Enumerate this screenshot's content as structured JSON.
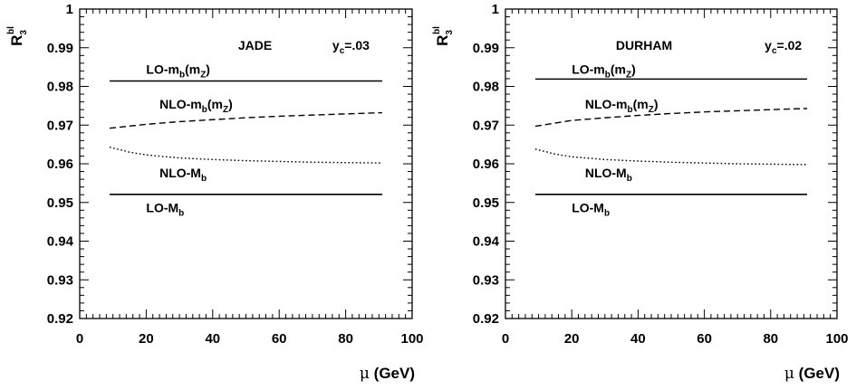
{
  "chart_data": [
    {
      "type": "line",
      "title": "",
      "annotation": {
        "algo": "JADE",
        "ycut_sym": "y",
        "ycut_sub": "c",
        "ycut_val": "=.03"
      },
      "xlabel": {
        "sym": "μ",
        "unit": "(GeV)"
      },
      "ylabel": {
        "main": "R",
        "sub": "3",
        "sup": "bl"
      },
      "xlim": [
        0,
        100
      ],
      "ylim": [
        0.92,
        1.0
      ],
      "xticks": [
        0,
        20,
        40,
        60,
        80,
        100
      ],
      "yticks": [
        0.92,
        0.93,
        0.94,
        0.95,
        0.96,
        0.97,
        0.98,
        0.99,
        1.0
      ],
      "ytick_labels": [
        "0.92",
        "0.93",
        "0.94",
        "0.95",
        "0.96",
        "0.97",
        "0.98",
        "0.99",
        "1"
      ],
      "series": [
        {
          "key": "lo_mbmz",
          "style": "solid",
          "label": {
            "pre": "LO-m",
            "sub1": "b",
            "mid": "(m",
            "sub2": "Z",
            "post": ")"
          },
          "label_at": [
            20,
            0.9833
          ],
          "x": [
            9,
            91
          ],
          "y": [
            0.9814,
            0.9814
          ]
        },
        {
          "key": "nlo_mbmz",
          "style": "dashed",
          "label": {
            "pre": "NLO-m",
            "sub1": "b",
            "mid": "(m",
            "sub2": "Z",
            "post": ")"
          },
          "label_at": [
            24,
            0.9743
          ],
          "x": [
            9,
            20,
            30,
            40,
            50,
            60,
            70,
            80,
            91
          ],
          "y": [
            0.9692,
            0.9702,
            0.9709,
            0.9714,
            0.9719,
            0.9723,
            0.9726,
            0.9729,
            0.9732
          ]
        },
        {
          "key": "nlo_Mb",
          "style": "dotted",
          "label": {
            "pre": "NLO-M",
            "sub1": "b"
          },
          "label_at": [
            24,
            0.9565
          ],
          "x": [
            9,
            15,
            20,
            30,
            40,
            50,
            60,
            70,
            80,
            91
          ],
          "y": [
            0.9643,
            0.963,
            0.9623,
            0.9615,
            0.9611,
            0.9608,
            0.9606,
            0.9604,
            0.9603,
            0.9602
          ]
        },
        {
          "key": "lo_Mb",
          "style": "solid",
          "label": {
            "pre": "LO-M",
            "sub1": "b"
          },
          "label_at": [
            20,
            0.9475
          ],
          "x": [
            9,
            91
          ],
          "y": [
            0.9521,
            0.9521
          ]
        }
      ]
    },
    {
      "type": "line",
      "title": "",
      "annotation": {
        "algo": "DURHAM",
        "ycut_sym": "y",
        "ycut_sub": "c",
        "ycut_val": "=.02"
      },
      "xlabel": {
        "sym": "μ",
        "unit": "(GeV)"
      },
      "ylabel": {
        "main": "R",
        "sub": "3",
        "sup": "bl"
      },
      "xlim": [
        0,
        100
      ],
      "ylim": [
        0.92,
        1.0
      ],
      "xticks": [
        0,
        20,
        40,
        60,
        80,
        100
      ],
      "yticks": [
        0.92,
        0.93,
        0.94,
        0.95,
        0.96,
        0.97,
        0.98,
        0.99,
        1.0
      ],
      "ytick_labels": [
        "0.92",
        "0.93",
        "0.94",
        "0.95",
        "0.96",
        "0.97",
        "0.98",
        "0.99",
        "1"
      ],
      "series": [
        {
          "key": "lo_mbmz",
          "style": "solid",
          "label": {
            "pre": "LO-m",
            "sub1": "b",
            "mid": "(m",
            "sub2": "Z",
            "post": ")"
          },
          "label_at": [
            20,
            0.9833
          ],
          "x": [
            9,
            91
          ],
          "y": [
            0.9819,
            0.9819
          ]
        },
        {
          "key": "nlo_mbmz",
          "style": "dashed",
          "label": {
            "pre": "NLO-m",
            "sub1": "b",
            "mid": "(m",
            "sub2": "Z",
            "post": ")"
          },
          "label_at": [
            24,
            0.9743
          ],
          "x": [
            9,
            20,
            30,
            40,
            50,
            60,
            70,
            80,
            91
          ],
          "y": [
            0.9697,
            0.9712,
            0.9719,
            0.9725,
            0.973,
            0.9734,
            0.9737,
            0.974,
            0.9743
          ]
        },
        {
          "key": "nlo_Mb",
          "style": "dotted",
          "label": {
            "pre": "NLO-M",
            "sub1": "b"
          },
          "label_at": [
            24,
            0.9565
          ],
          "x": [
            9,
            15,
            20,
            30,
            40,
            50,
            60,
            70,
            80,
            91
          ],
          "y": [
            0.9638,
            0.9625,
            0.9618,
            0.9611,
            0.9607,
            0.9604,
            0.9602,
            0.96,
            0.9599,
            0.9598
          ]
        },
        {
          "key": "lo_Mb",
          "style": "solid",
          "label": {
            "pre": "LO-M",
            "sub1": "b"
          },
          "label_at": [
            20,
            0.9475
          ],
          "x": [
            9,
            91
          ],
          "y": [
            0.9521,
            0.9521
          ]
        }
      ]
    }
  ]
}
